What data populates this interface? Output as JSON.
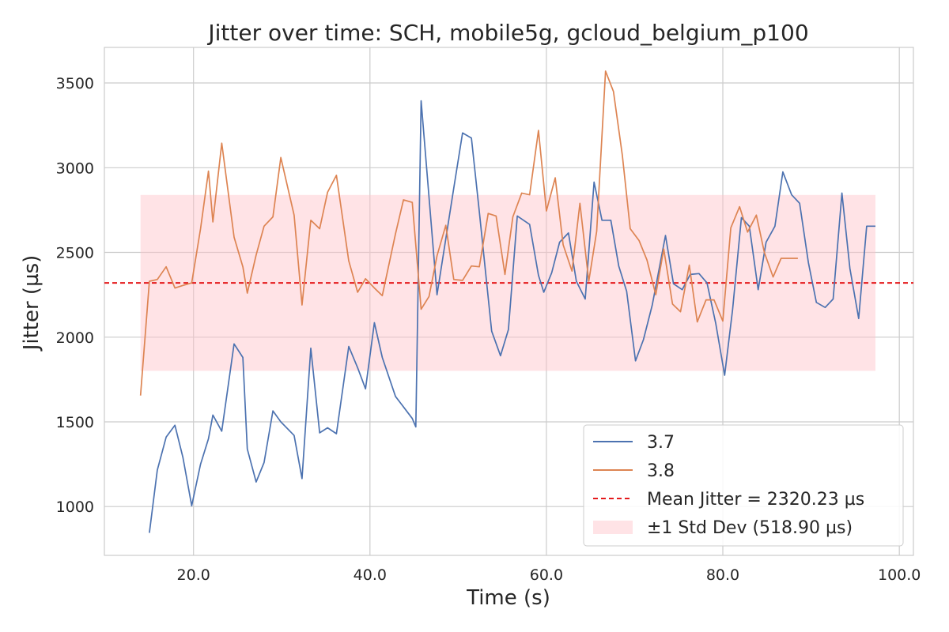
{
  "chart_data": {
    "type": "line",
    "title": "Jitter over time: SCH, mobile5g, gcloud_belgium_p100",
    "xlabel": "Time (s)",
    "ylabel": "Jitter (µs)",
    "xlim": [
      9.9,
      101.6
    ],
    "ylim": [
      712,
      3710
    ],
    "grid": true,
    "legend_position": "lower-right",
    "xticks": [
      {
        "value": 20,
        "label": "20.0"
      },
      {
        "value": 40,
        "label": "40.0"
      },
      {
        "value": 60,
        "label": "60.0"
      },
      {
        "value": 80,
        "label": "80.0"
      },
      {
        "value": 100,
        "label": "100.0"
      }
    ],
    "yticks": [
      {
        "value": 1000,
        "label": "1000"
      },
      {
        "value": 1500,
        "label": "1500"
      },
      {
        "value": 2000,
        "label": "2000"
      },
      {
        "value": 2500,
        "label": "2500"
      },
      {
        "value": 3000,
        "label": "3000"
      },
      {
        "value": 3500,
        "label": "3500"
      }
    ],
    "series": [
      {
        "name": "3.7",
        "color": "#4c72b0",
        "x": [
          15.0,
          15.9,
          16.9,
          17.9,
          18.8,
          19.8,
          20.8,
          21.7,
          22.2,
          23.2,
          24.6,
          25.6,
          26.1,
          27.1,
          28.0,
          29.0,
          29.9,
          31.4,
          32.3,
          33.3,
          34.3,
          35.2,
          36.2,
          37.6,
          38.6,
          39.5,
          40.5,
          41.4,
          42.9,
          44.8,
          45.2,
          45.8,
          47.6,
          48.6,
          49.5,
          50.5,
          51.5,
          52.4,
          53.8,
          54.8,
          55.7,
          56.7,
          58.1,
          59.1,
          59.7,
          60.6,
          61.5,
          62.5,
          63.4,
          64.4,
          65.4,
          66.3,
          67.3,
          68.2,
          69.1,
          70.1,
          71.0,
          72.0,
          73.5,
          74.4,
          75.4,
          76.3,
          77.3,
          78.2,
          79.2,
          80.2,
          81.1,
          82.1,
          83.0,
          84.0,
          84.9,
          85.9,
          86.8,
          87.8,
          88.7,
          89.7,
          90.6,
          91.6,
          92.5,
          93.5,
          94.4,
          95.4,
          96.3,
          97.3
        ],
        "y": [
          845,
          1215,
          1410,
          1480,
          1290,
          1005,
          1250,
          1400,
          1540,
          1445,
          1960,
          1880,
          1340,
          1145,
          1260,
          1565,
          1500,
          1420,
          1165,
          1935,
          1435,
          1465,
          1430,
          1945,
          1820,
          1695,
          2085,
          1880,
          1650,
          1520,
          1470,
          3395,
          2250,
          2580,
          2880,
          3205,
          3175,
          2740,
          2035,
          1890,
          2045,
          2715,
          2665,
          2365,
          2265,
          2380,
          2560,
          2615,
          2330,
          2225,
          2915,
          2690,
          2690,
          2420,
          2270,
          1860,
          1985,
          2190,
          2600,
          2315,
          2280,
          2370,
          2375,
          2320,
          2080,
          1775,
          2160,
          2705,
          2655,
          2280,
          2560,
          2655,
          2975,
          2840,
          2790,
          2440,
          2205,
          2175,
          2225,
          2850,
          2405,
          2110,
          2655,
          2655
        ]
      },
      {
        "name": "3.8",
        "color": "#dd8452",
        "x": [
          14.0,
          15.0,
          15.9,
          16.9,
          17.9,
          18.8,
          19.8,
          20.8,
          21.7,
          22.2,
          23.2,
          24.6,
          25.6,
          26.1,
          27.1,
          28.0,
          29.0,
          29.9,
          31.4,
          32.3,
          33.3,
          34.3,
          35.2,
          36.2,
          37.6,
          38.6,
          39.5,
          40.5,
          41.4,
          42.9,
          43.8,
          44.8,
          45.8,
          46.7,
          47.6,
          48.6,
          49.5,
          50.5,
          51.5,
          52.4,
          53.4,
          54.3,
          55.3,
          56.2,
          57.2,
          58.1,
          59.1,
          60.0,
          61.0,
          61.9,
          62.9,
          63.8,
          64.8,
          65.7,
          66.7,
          67.6,
          68.6,
          69.5,
          70.5,
          71.4,
          72.4,
          73.3,
          74.3,
          75.2,
          76.2,
          77.1,
          78.1,
          79.0,
          80.0,
          80.9,
          81.9,
          82.8,
          83.8,
          84.7,
          85.7,
          86.6,
          87.6,
          88.5
        ],
        "y": [
          1655,
          2330,
          2340,
          2415,
          2290,
          2305,
          2320,
          2640,
          2980,
          2680,
          3145,
          2590,
          2415,
          2260,
          2485,
          2655,
          2710,
          3060,
          2720,
          2190,
          2690,
          2640,
          2855,
          2955,
          2450,
          2265,
          2345,
          2290,
          2245,
          2610,
          2810,
          2795,
          2165,
          2240,
          2480,
          2660,
          2340,
          2335,
          2420,
          2415,
          2730,
          2715,
          2370,
          2710,
          2850,
          2840,
          3220,
          2745,
          2940,
          2545,
          2390,
          2790,
          2330,
          2625,
          3570,
          3450,
          3075,
          2640,
          2570,
          2455,
          2250,
          2520,
          2195,
          2150,
          2425,
          2090,
          2220,
          2220,
          2095,
          2645,
          2770,
          2620,
          2720,
          2500,
          2355,
          2465,
          2465,
          2465
        ]
      }
    ],
    "mean_line": {
      "name": "Mean Jitter = 2320.23 µs",
      "value": 2320.23,
      "color": "#e41a1c"
    },
    "std_band": {
      "name": "±1 Std Dev (518.90 µs)",
      "lower": 1801.33,
      "upper": 2839.13,
      "x_start": 14.0,
      "x_end": 97.3,
      "color": "#ffc0c8"
    }
  }
}
